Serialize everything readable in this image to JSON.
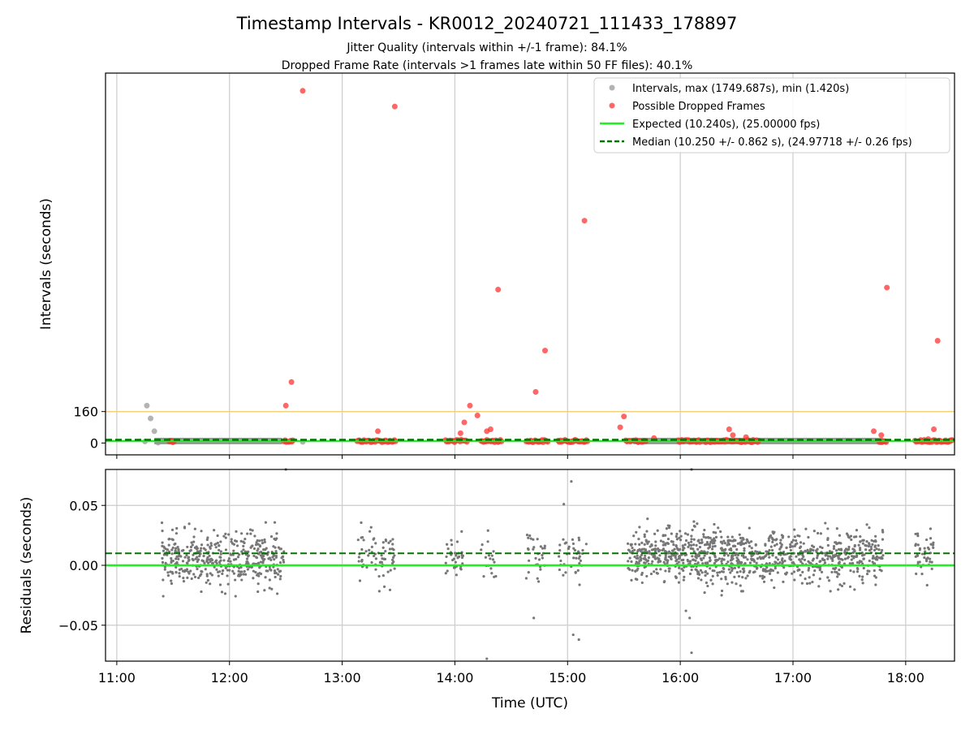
{
  "figure": {
    "title": "Timestamp Intervals - KR0012_20240721_111433_178897",
    "subtitle_1": "Jitter Quality (intervals within +/-1 frame): 84.1%",
    "subtitle_2": "Dropped Frame Rate (intervals >1 frames late within 50 FF files): 40.1%"
  },
  "chart_data": [
    {
      "type": "scatter",
      "ylabel": "Intervals (seconds)",
      "xlim": [
        "10:54",
        "18:26"
      ],
      "ylim": [
        -60,
        1880
      ],
      "y_ticks": [
        0,
        160
      ],
      "y_tick_labels": [
        "0",
        "160"
      ],
      "grid": "x",
      "legend_placement": "upper-right",
      "threshold_line": {
        "y": 160,
        "color": "#f5d27a"
      },
      "legend": [
        {
          "label": "Intervals, max (1749.687s), min (1.420s)",
          "marker": "circle",
          "color": "#999999"
        },
        {
          "label": "Possible Dropped Frames",
          "marker": "circle",
          "color": "#ff3333"
        },
        {
          "label": "Expected (10.240s), (25.00000 fps)",
          "marker": "solid-line",
          "color": "#22ee22"
        },
        {
          "label": "Median (10.250 +/- 0.862 s), (24.97718 +/- 0.26 fps)",
          "marker": "dashed-line",
          "color": "#007700"
        }
      ],
      "series": [
        {
          "name": "Intervals, max (1749.687s), min (1.420s)",
          "color": "#999999",
          "points": [
            [
              "11:16",
              190
            ],
            [
              "11:18",
              125
            ],
            [
              "11:20",
              60
            ],
            [
              "11:22",
              2
            ],
            [
              "11:15",
              8
            ],
            [
              "12:39",
              6
            ]
          ],
          "dense_segments": [
            [
              "11:20",
              "12:28"
            ],
            [
              "15:35",
              "17:48"
            ]
          ]
        },
        {
          "name": "Possible Dropped Frames",
          "color": "#ff3333",
          "points": [
            [
              "12:30",
              190
            ],
            [
              "12:33",
              310
            ],
            [
              "12:39",
              1790
            ],
            [
              "13:19",
              60
            ],
            [
              "13:28",
              1710
            ],
            [
              "14:03",
              50
            ],
            [
              "14:05",
              105
            ],
            [
              "14:08",
              190
            ],
            [
              "14:12",
              140
            ],
            [
              "14:17",
              60
            ],
            [
              "14:19",
              70
            ],
            [
              "14:23",
              780
            ],
            [
              "14:43",
              260
            ],
            [
              "14:48",
              470
            ],
            [
              "15:09",
              1130
            ],
            [
              "15:28",
              80
            ],
            [
              "15:30",
              135
            ],
            [
              "16:26",
              70
            ],
            [
              "16:28",
              40
            ],
            [
              "17:43",
              60
            ],
            [
              "17:47",
              40
            ],
            [
              "17:50",
              790
            ],
            [
              "18:12",
              20
            ],
            [
              "18:15",
              70
            ],
            [
              "18:17",
              520
            ],
            [
              "18:24",
              10
            ],
            [
              "16:35",
              30
            ],
            [
              "15:46",
              25
            ]
          ],
          "dense_segments": [
            [
              "11:28",
              "11:31"
            ],
            [
              "12:29",
              "12:34"
            ],
            [
              "13:08",
              "13:29"
            ],
            [
              "13:55",
              "14:07"
            ],
            [
              "14:14",
              "14:25"
            ],
            [
              "14:38",
              "14:50"
            ],
            [
              "14:55",
              "15:11"
            ],
            [
              "15:31",
              "15:42"
            ],
            [
              "15:59",
              "16:11"
            ],
            [
              "16:13",
              "16:42"
            ],
            [
              "17:46",
              "17:50"
            ],
            [
              "18:05",
              "18:25"
            ]
          ]
        },
        {
          "name": "Expected (10.240s), (25.00000 fps)",
          "color": "#22ee22",
          "y": 10.24
        },
        {
          "name": "Median (10.250 +/- 0.862 s), (24.97718 +/- 0.26 fps)",
          "color": "#007700",
          "y": 10.25
        }
      ]
    },
    {
      "type": "scatter",
      "xlabel": "Time (UTC)",
      "ylabel": "Residuals (seconds)",
      "xlim": [
        "10:54",
        "18:26"
      ],
      "ylim": [
        -0.08,
        0.08
      ],
      "x_ticks": [
        "11:00",
        "12:00",
        "13:00",
        "14:00",
        "15:00",
        "16:00",
        "17:00",
        "18:00"
      ],
      "y_ticks": [
        -0.05,
        0.0,
        0.05
      ],
      "y_tick_labels": [
        "−0.05",
        "0.00",
        "0.05"
      ],
      "grid": "both",
      "expected_line": {
        "y": 0.0,
        "color": "#22ee22"
      },
      "median_line": {
        "y": 0.01,
        "color": "#007700"
      },
      "point_color": "#777777",
      "clusters": [
        {
          "start": "11:24",
          "end": "12:29",
          "center": 0.005,
          "spread": 0.014,
          "count": 430
        },
        {
          "start": "13:08",
          "end": "13:28",
          "center": 0.007,
          "spread": 0.013,
          "count": 70
        },
        {
          "start": "13:55",
          "end": "14:05",
          "center": 0.007,
          "spread": 0.011,
          "count": 35
        },
        {
          "start": "14:13",
          "end": "14:22",
          "center": 0.005,
          "spread": 0.012,
          "count": 18
        },
        {
          "start": "14:38",
          "end": "14:49",
          "center": 0.008,
          "spread": 0.013,
          "count": 30
        },
        {
          "start": "14:55",
          "end": "15:10",
          "center": 0.007,
          "spread": 0.012,
          "count": 40
        },
        {
          "start": "15:32",
          "end": "16:30",
          "center": 0.008,
          "spread": 0.014,
          "count": 470
        },
        {
          "start": "16:30",
          "end": "17:48",
          "center": 0.007,
          "spread": 0.013,
          "count": 520
        },
        {
          "start": "18:05",
          "end": "18:15",
          "center": 0.006,
          "spread": 0.014,
          "count": 45
        }
      ],
      "outliers": [
        [
          "12:30",
          0.08
        ],
        [
          "14:17",
          -0.078
        ],
        [
          "14:42",
          -0.044
        ],
        [
          "14:58",
          0.051
        ],
        [
          "15:02",
          0.07
        ],
        [
          "15:03",
          -0.058
        ],
        [
          "15:06",
          -0.062
        ],
        [
          "16:03",
          -0.038
        ],
        [
          "16:05",
          -0.044
        ],
        [
          "16:06",
          -0.073
        ],
        [
          "16:06",
          0.08
        ],
        [
          "16:22",
          -0.025
        ]
      ]
    }
  ]
}
